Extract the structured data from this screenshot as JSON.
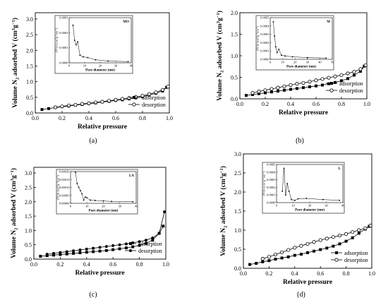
{
  "chart_data": [
    {
      "type": "line",
      "panel_label": "(a)",
      "xlabel": "Relative pressure",
      "ylabel": "Volume N2 adsorbed V (cm3g-1)",
      "xlim": [
        0.0,
        1.0
      ],
      "ylim": [
        0.0,
        3.2
      ],
      "xticks": [
        "0.0",
        "0.2",
        "0.4",
        "0.6",
        "0.8",
        "1.0"
      ],
      "yticks": [
        "0.0",
        "0.5",
        "1.0",
        "1.5",
        "2.0",
        "2.5",
        "3.0"
      ],
      "legend_position": "bottom-right",
      "series": [
        {
          "name": "adsorption",
          "marker": "filled-square",
          "x": [
            0.05,
            0.1,
            0.15,
            0.2,
            0.25,
            0.3,
            0.35,
            0.4,
            0.45,
            0.5,
            0.55,
            0.6,
            0.65,
            0.7,
            0.75,
            0.8,
            0.85,
            0.9,
            0.95,
            0.98
          ],
          "y": [
            0.11,
            0.14,
            0.17,
            0.2,
            0.22,
            0.25,
            0.27,
            0.3,
            0.32,
            0.35,
            0.37,
            0.4,
            0.42,
            0.45,
            0.48,
            0.52,
            0.57,
            0.63,
            0.7,
            0.82
          ]
        },
        {
          "name": "desorption",
          "marker": "open-circle",
          "x": [
            0.15,
            0.2,
            0.25,
            0.3,
            0.35,
            0.4,
            0.45,
            0.5,
            0.55,
            0.6,
            0.65,
            0.7,
            0.75,
            0.8,
            0.85,
            0.9,
            0.95,
            0.99
          ],
          "y": [
            0.18,
            0.21,
            0.24,
            0.26,
            0.29,
            0.31,
            0.34,
            0.36,
            0.39,
            0.42,
            0.45,
            0.48,
            0.51,
            0.55,
            0.6,
            0.66,
            0.74,
            0.84
          ]
        }
      ],
      "inset": {
        "title": "MO",
        "xlabel": "Pore diameter (nm)",
        "ylabel": "dV/dr (cm3g-1nm-1)",
        "xlim": [
          0,
          40
        ],
        "ylim": [
          0,
          0.0003
        ],
        "xticks": [
          "0",
          "10",
          "20",
          "30",
          "40"
        ],
        "yticks": [
          "0.0000",
          "0.0001",
          "0.0002",
          "0.0003"
        ],
        "x": [
          2.5,
          3.5,
          4.5,
          5.5,
          7,
          9,
          12,
          17,
          25,
          38
        ],
        "y": [
          0.00025,
          0.00015,
          0.00012,
          0.00014,
          5e-05,
          4e-05,
          3.5e-05,
          2e-05,
          1.2e-05,
          8e-06
        ]
      }
    },
    {
      "type": "line",
      "panel_label": "(b)",
      "xlabel": "Relative pressure",
      "ylabel": "Volume N2 adsorbed V (cm3g-1)",
      "xlim": [
        0.0,
        1.0
      ],
      "ylim": [
        0.0,
        2.0
      ],
      "xticks": [
        "0.0",
        "0.2",
        "0.4",
        "0.6",
        "0.8",
        "1.0"
      ],
      "yticks": [
        "0.0",
        "0.5",
        "1.0",
        "1.5",
        "2.0"
      ],
      "legend_position": "bottom-right",
      "series": [
        {
          "name": "adsorption",
          "marker": "filled-square",
          "x": [
            0.05,
            0.1,
            0.15,
            0.2,
            0.25,
            0.3,
            0.35,
            0.4,
            0.45,
            0.5,
            0.55,
            0.6,
            0.65,
            0.7,
            0.75,
            0.8,
            0.85,
            0.9,
            0.95,
            0.98
          ],
          "y": [
            0.08,
            0.1,
            0.12,
            0.14,
            0.16,
            0.18,
            0.2,
            0.22,
            0.24,
            0.26,
            0.28,
            0.3,
            0.32,
            0.35,
            0.38,
            0.42,
            0.47,
            0.55,
            0.64,
            0.76
          ]
        },
        {
          "name": "desorption",
          "marker": "open-circle",
          "x": [
            0.1,
            0.15,
            0.2,
            0.25,
            0.3,
            0.35,
            0.4,
            0.45,
            0.5,
            0.55,
            0.6,
            0.65,
            0.7,
            0.75,
            0.8,
            0.85,
            0.9,
            0.95,
            0.99
          ],
          "y": [
            0.14,
            0.17,
            0.2,
            0.23,
            0.26,
            0.29,
            0.32,
            0.35,
            0.37,
            0.4,
            0.43,
            0.46,
            0.49,
            0.52,
            0.55,
            0.59,
            0.63,
            0.69,
            0.78
          ]
        }
      ],
      "inset": {
        "title": "M",
        "xlabel": "Pore diameter (nm)",
        "ylabel": "dV/dr (cm3g-1nm-1)",
        "xlim": [
          0,
          50
        ],
        "ylim": [
          0,
          0.0005
        ],
        "xticks": [
          "0",
          "10",
          "20",
          "30",
          "40",
          "50"
        ],
        "yticks": [
          "0.0000",
          "0.0001",
          "0.0002",
          "0.0003",
          "0.0004",
          "0.0005"
        ],
        "x": [
          2.5,
          3.5,
          4.5,
          5.5,
          7,
          9,
          12,
          18,
          30,
          45
        ],
        "y": [
          0.00045,
          0.00028,
          0.00015,
          8e-05,
          0.00012,
          5e-05,
          4e-05,
          3e-05,
          2e-05,
          1.5e-05
        ]
      }
    },
    {
      "type": "line",
      "panel_label": "(c)",
      "xlabel": "Relative pressure",
      "ylabel": "Volume N2 adsorbed V (cm3g-1)",
      "xlim": [
        0.0,
        1.0
      ],
      "ylim": [
        0.0,
        3.2
      ],
      "xticks": [
        "0.0",
        "0.2",
        "0.4",
        "0.6",
        "0.8",
        "1.0"
      ],
      "yticks": [
        "0.0",
        "0.5",
        "1.0",
        "1.5",
        "2.0",
        "2.5",
        "3.0"
      ],
      "legend_position": "bottom-right",
      "series": [
        {
          "name": "adsorption",
          "marker": "filled-square",
          "x": [
            0.05,
            0.1,
            0.15,
            0.2,
            0.25,
            0.3,
            0.35,
            0.4,
            0.45,
            0.5,
            0.55,
            0.6,
            0.65,
            0.7,
            0.75,
            0.8,
            0.85,
            0.9,
            0.95,
            0.98
          ],
          "y": [
            0.1,
            0.12,
            0.14,
            0.16,
            0.18,
            0.2,
            0.22,
            0.24,
            0.26,
            0.28,
            0.3,
            0.33,
            0.36,
            0.39,
            0.43,
            0.48,
            0.55,
            0.66,
            0.9,
            1.15
          ]
        },
        {
          "name": "desorption",
          "marker": "filled-circle",
          "x": [
            0.1,
            0.15,
            0.2,
            0.25,
            0.3,
            0.35,
            0.4,
            0.45,
            0.5,
            0.55,
            0.6,
            0.65,
            0.7,
            0.75,
            0.8,
            0.85,
            0.9,
            0.95,
            0.99
          ],
          "y": [
            0.17,
            0.2,
            0.23,
            0.26,
            0.29,
            0.32,
            0.35,
            0.38,
            0.41,
            0.44,
            0.47,
            0.5,
            0.53,
            0.57,
            0.61,
            0.66,
            0.74,
            0.9,
            1.65
          ]
        }
      ],
      "inset": {
        "title": "LA",
        "xlabel": "Pore diameter (nm)",
        "ylabel": "dV/dr (cm3g-1nm-1)",
        "xlim": [
          0,
          40
        ],
        "ylim": [
          0,
          0.0002
        ],
        "xticks": [
          "0",
          "10",
          "20",
          "30",
          "40"
        ],
        "yticks": [
          "0.00000",
          "0.00005",
          "0.00010",
          "0.00015",
          "0.00020"
        ],
        "x": [
          3,
          4,
          5,
          6,
          7,
          8,
          9,
          10,
          12,
          15,
          20,
          25,
          38
        ],
        "y": [
          0.000195,
          0.000125,
          0.0001,
          8e-05,
          6e-05,
          2e-05,
          4e-05,
          3.5e-05,
          2e-05,
          1.8e-05,
          1.5e-05,
          1.2e-05,
          1e-05
        ]
      }
    },
    {
      "type": "line",
      "panel_label": "(d)",
      "xlabel": "Relative pressure",
      "ylabel": "Volume N2 adsorbed V (cm3g-1)",
      "xlim": [
        0.0,
        1.0
      ],
      "ylim": [
        0.0,
        3.0
      ],
      "xticks": [
        "0.0",
        "0.2",
        "0.4",
        "0.6",
        "0.8",
        "1.0"
      ],
      "yticks": [
        "0.0",
        "0.5",
        "1.0",
        "1.5",
        "2.0",
        "2.5",
        "3.0"
      ],
      "legend_position": "bottom-right",
      "series": [
        {
          "name": "adsorption",
          "marker": "filled-square",
          "x": [
            0.05,
            0.1,
            0.15,
            0.2,
            0.25,
            0.3,
            0.35,
            0.4,
            0.45,
            0.5,
            0.55,
            0.6,
            0.65,
            0.7,
            0.75,
            0.8,
            0.85,
            0.9,
            0.95,
            0.98
          ],
          "y": [
            0.1,
            0.13,
            0.17,
            0.2,
            0.24,
            0.27,
            0.3,
            0.34,
            0.37,
            0.41,
            0.45,
            0.49,
            0.53,
            0.58,
            0.64,
            0.71,
            0.8,
            0.92,
            1.03,
            1.1
          ]
        },
        {
          "name": "desorption",
          "marker": "open-circle",
          "x": [
            0.15,
            0.2,
            0.25,
            0.3,
            0.35,
            0.4,
            0.45,
            0.5,
            0.55,
            0.6,
            0.65,
            0.7,
            0.75,
            0.8,
            0.85,
            0.9,
            0.95,
            0.99
          ],
          "y": [
            0.25,
            0.3,
            0.36,
            0.42,
            0.48,
            0.54,
            0.59,
            0.64,
            0.69,
            0.74,
            0.78,
            0.82,
            0.86,
            0.9,
            0.95,
            1.0,
            1.05,
            1.12
          ]
        }
      ],
      "inset": {
        "title": "L",
        "xlabel": "Pore diameter (nm)",
        "ylabel": "dV/dr (cm3g-1nm-1)",
        "xlim": [
          0,
          40
        ],
        "ylim": [
          0,
          0.0005
        ],
        "xticks": [
          "0",
          "10",
          "20",
          "30",
          "40"
        ],
        "yticks": [
          "0.0000",
          "0.0001",
          "0.0002",
          "0.0003",
          "0.0004",
          "0.0005"
        ],
        "x": [
          3.5,
          4.5,
          5.5,
          6.5,
          7.5,
          9,
          11,
          13,
          18,
          28,
          38
        ],
        "y": [
          0.00015,
          0.00045,
          0.0001,
          0.00025,
          0.00015,
          4e-05,
          3e-05,
          5e-05,
          5.5e-05,
          4e-05,
          3e-05
        ]
      }
    }
  ]
}
